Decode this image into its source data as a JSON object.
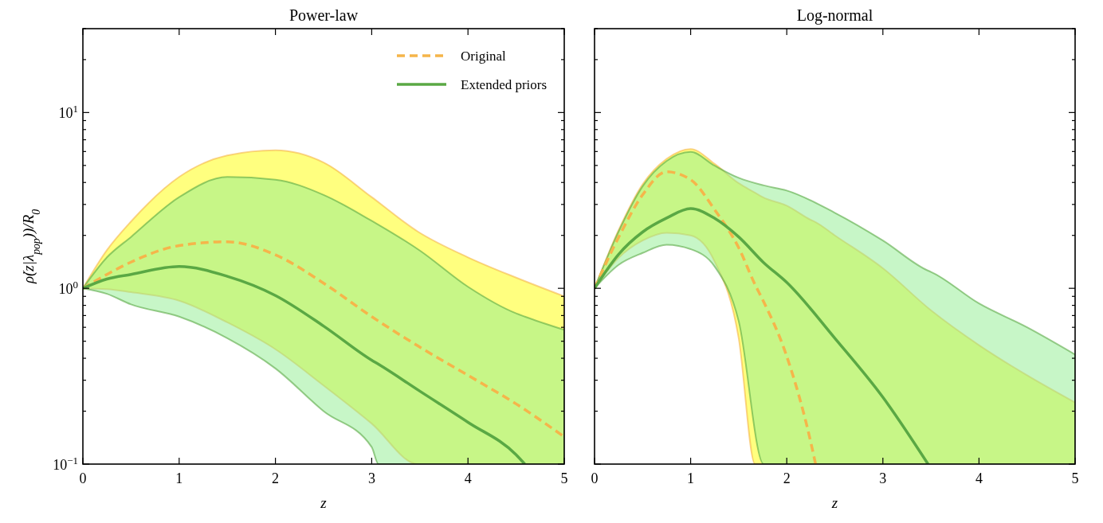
{
  "chart_data": [
    {
      "type": "line",
      "title": "Power-law",
      "xlabel": "z",
      "ylabel": "ρ̇(z|λ$_{pop}$))/R$_{0}$",
      "log": "y",
      "xlim": [
        0,
        5
      ],
      "ylim": [
        0.1,
        30
      ],
      "xticks": [
        0,
        1,
        2,
        3,
        4,
        5
      ],
      "yticks": [
        {
          "value": 0.1,
          "label": "10$^{−1}$"
        },
        {
          "value": 0.2,
          "label": null
        },
        {
          "value": 0.3,
          "label": null
        },
        {
          "value": 0.4,
          "label": null
        },
        {
          "value": 0.5,
          "label": null
        },
        {
          "value": 0.6,
          "label": null
        },
        {
          "value": 0.7,
          "label": null
        },
        {
          "value": 0.8,
          "label": null
        },
        {
          "value": 0.9,
          "label": null
        },
        {
          "value": 1,
          "label": "10$^{0}$"
        },
        {
          "value": 2,
          "label": null
        },
        {
          "value": 3,
          "label": null
        },
        {
          "value": 4,
          "label": null
        },
        {
          "value": 5,
          "label": null
        },
        {
          "value": 6,
          "label": null
        },
        {
          "value": 7,
          "label": null
        },
        {
          "value": 8,
          "label": null
        },
        {
          "value": 9,
          "label": null
        },
        {
          "value": 10,
          "label": "10$^{1}$"
        },
        {
          "value": 20,
          "label": null
        },
        {
          "value": 30,
          "label": null
        }
      ],
      "legend": "top right",
      "grid": false,
      "series": [
        {
          "name": "Original",
          "color": "#f5b54a",
          "line_style": "dashed",
          "x": [
            0,
            0.25,
            0.5,
            1,
            1.5,
            2,
            2.5,
            3,
            3.48,
            4,
            4.5,
            5
          ],
          "values": [
            1,
            1.2,
            1.41,
            1.75,
            1.84,
            1.55,
            1.07,
            0.69,
            0.47,
            0.32,
            0.22,
            0.143
          ],
          "lower": [
            1,
            0.99,
            0.95,
            0.85,
            0.64,
            0.45,
            0.28,
            0.17,
            0.1,
            0.1,
            0.1,
            0.1
          ],
          "upper": [
            1,
            1.65,
            2.4,
            4.3,
            5.7,
            6.1,
            5.2,
            3.3,
            2.1,
            1.5,
            1.15,
            0.9
          ]
        },
        {
          "name": "Extended priors",
          "color": "#5aa844",
          "line_style": "solid",
          "x": [
            0,
            0.25,
            0.5,
            1,
            1.5,
            2,
            2.5,
            3,
            3.07,
            3.5,
            4,
            4.5,
            4.59,
            5
          ],
          "values": [
            1,
            1.13,
            1.2,
            1.33,
            1.17,
            0.91,
            0.61,
            0.39,
            0.37,
            0.26,
            0.173,
            0.113,
            0.1,
            null
          ],
          "lower": [
            1,
            0.93,
            0.81,
            0.69,
            0.52,
            0.35,
            0.2,
            0.125,
            0.1,
            0.1,
            0.1,
            0.1,
            0.1,
            0.1
          ],
          "upper": [
            1,
            1.5,
            1.96,
            3.3,
            4.3,
            4.15,
            3.4,
            2.42,
            2.3,
            1.64,
            1.02,
            0.72,
            0.69,
            0.58
          ]
        }
      ]
    },
    {
      "type": "line",
      "title": "Log-normal",
      "xlabel": "z",
      "log": "y",
      "xlim": [
        0,
        5
      ],
      "ylim": [
        0.1,
        30
      ],
      "xticks": [
        0,
        1,
        2,
        3,
        4,
        5
      ],
      "yticks": [
        {
          "value": 0.1,
          "label": null
        },
        {
          "value": 0.2,
          "label": null
        },
        {
          "value": 0.3,
          "label": null
        },
        {
          "value": 0.4,
          "label": null
        },
        {
          "value": 0.5,
          "label": null
        },
        {
          "value": 0.6,
          "label": null
        },
        {
          "value": 0.7,
          "label": null
        },
        {
          "value": 0.8,
          "label": null
        },
        {
          "value": 0.9,
          "label": null
        },
        {
          "value": 1,
          "label": null
        },
        {
          "value": 2,
          "label": null
        },
        {
          "value": 3,
          "label": null
        },
        {
          "value": 4,
          "label": null
        },
        {
          "value": 5,
          "label": null
        },
        {
          "value": 6,
          "label": null
        },
        {
          "value": 7,
          "label": null
        },
        {
          "value": 8,
          "label": null
        },
        {
          "value": 9,
          "label": null
        },
        {
          "value": 10,
          "label": null
        },
        {
          "value": 20,
          "label": null
        },
        {
          "value": 30,
          "label": null
        }
      ],
      "tick_labels": "x",
      "grid": false,
      "series": [
        {
          "color": "#f5b54a",
          "line_style": "dashed",
          "x": [
            0,
            0.25,
            0.5,
            0.75,
            1,
            1.25,
            1.5,
            1.67,
            1.75,
            2,
            2.25,
            2.3,
            2.5,
            3,
            3.5,
            4,
            4.5,
            5
          ],
          "values": [
            1,
            1.95,
            3.4,
            4.6,
            4.15,
            2.8,
            1.7,
            1.05,
            0.86,
            0.41,
            0.133,
            0.1,
            null,
            null,
            null,
            null,
            null,
            null
          ],
          "lower": [
            1,
            1.49,
            1.87,
            2.07,
            2.0,
            1.42,
            0.52,
            0.1,
            0.1,
            0.1,
            0.1,
            0.1,
            0.1,
            0.1,
            0.1,
            0.1,
            0.1,
            0.1
          ],
          "upper": [
            1,
            2.14,
            3.9,
            5.45,
            6.2,
            5.1,
            3.96,
            3.5,
            3.3,
            2.95,
            2.45,
            2.38,
            2.0,
            1.3,
            0.75,
            0.475,
            0.32,
            0.224
          ]
        },
        {
          "color": "#5aa844",
          "line_style": "solid",
          "x": [
            0,
            0.25,
            0.5,
            0.75,
            1,
            1.25,
            1.5,
            1.76,
            2,
            2.5,
            3,
            3.47,
            3.5,
            4,
            4.5,
            5
          ],
          "values": [
            1,
            1.56,
            2.09,
            2.51,
            2.84,
            2.5,
            1.96,
            1.4,
            1.08,
            0.52,
            0.24,
            0.1,
            null,
            null,
            null,
            null
          ],
          "lower": [
            1,
            1.36,
            1.59,
            1.77,
            1.67,
            1.33,
            0.65,
            0.1,
            0.1,
            0.1,
            0.1,
            0.1,
            0.1,
            0.1,
            0.1,
            0.1
          ],
          "upper": [
            1,
            2.1,
            3.8,
            5.3,
            5.97,
            4.98,
            4.25,
            3.85,
            3.6,
            2.69,
            1.87,
            1.26,
            1.24,
            0.82,
            0.6,
            0.42
          ]
        }
      ]
    }
  ]
}
